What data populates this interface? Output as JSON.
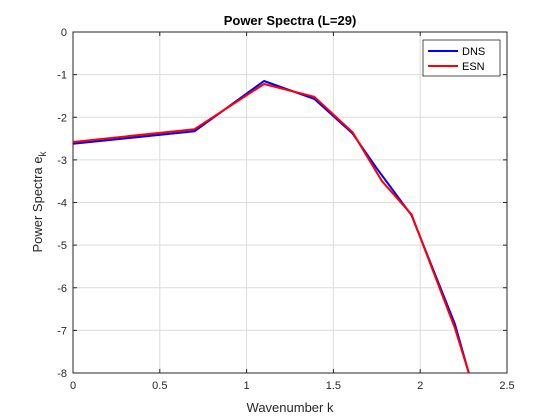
{
  "chart_data": {
    "type": "line",
    "title": "Power Spectra (L=29)",
    "xlabel": "Wavenumber k",
    "ylabel_main": "Power Spectra e",
    "ylabel_sub": "k",
    "xlim": [
      0,
      2.5
    ],
    "ylim": [
      -8,
      0
    ],
    "xticks": [
      0,
      0.5,
      1,
      1.5,
      2,
      2.5
    ],
    "xtick_labels": [
      "0",
      "0.5",
      "1",
      "1.5",
      "2",
      "2.5"
    ],
    "yticks": [
      0,
      -1,
      -2,
      -3,
      -4,
      -5,
      -6,
      -7,
      -8
    ],
    "ytick_labels": [
      "0",
      "-1",
      "-2",
      "-3",
      "-4",
      "-5",
      "-6",
      "-7",
      "-8"
    ],
    "grid": true,
    "legend_position": "top-right",
    "series": [
      {
        "name": "DNS",
        "color": "#0000ff",
        "x": [
          0,
          0.7,
          1.1,
          1.39,
          1.61,
          1.75,
          1.95,
          2.2,
          2.28
        ],
        "y": [
          -2.62,
          -2.33,
          -1.15,
          -1.57,
          -2.38,
          -3.2,
          -4.3,
          -6.85,
          -8.0
        ]
      },
      {
        "name": "ESN",
        "color": "#ff0000",
        "x": [
          0,
          0.7,
          1.1,
          1.39,
          1.61,
          1.78,
          1.95,
          2.2,
          2.28
        ],
        "y": [
          -2.58,
          -2.28,
          -1.22,
          -1.52,
          -2.35,
          -3.5,
          -4.28,
          -6.95,
          -8.0
        ]
      }
    ]
  }
}
